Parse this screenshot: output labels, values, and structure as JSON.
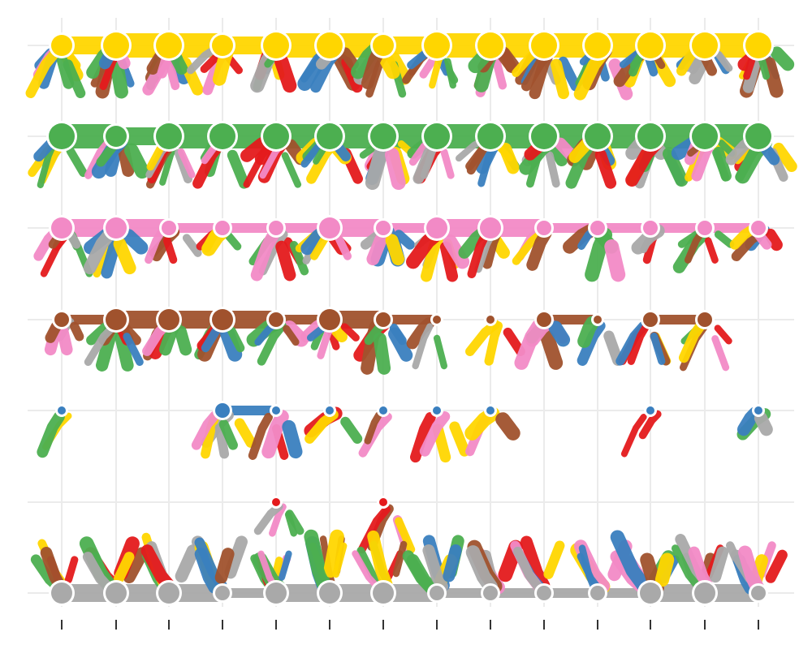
{
  "chart_data": {
    "type": "other",
    "grid": true,
    "rows": 7,
    "columns": 14,
    "colors": {
      "yellow": "#FFD600",
      "green": "#4CAF50",
      "brown": "#A0522D",
      "blue": "#3A7FBF",
      "red": "#E41A1C",
      "grey": "#A9A9A9",
      "pink": "#F28AC6"
    },
    "row_node_colors": [
      "yellow",
      "green",
      "pink",
      "brown",
      "blue",
      "red",
      "grey"
    ],
    "row_node_sizes": [
      [
        2,
        3,
        3,
        2,
        3,
        3,
        2,
        3,
        3,
        3,
        3,
        3,
        3,
        3
      ],
      [
        3,
        2,
        3,
        3,
        3,
        3,
        3,
        3,
        3,
        3,
        3,
        3,
        3,
        3
      ],
      [
        2,
        2,
        1,
        1,
        1,
        2,
        1,
        2,
        2,
        1,
        1,
        1,
        1,
        1
      ],
      [
        1,
        2,
        2,
        2,
        1,
        2,
        1,
        0,
        0,
        1,
        0,
        1,
        1,
        0
      ],
      [
        0,
        0,
        0,
        1,
        0,
        0,
        0,
        0,
        0,
        0,
        0,
        0,
        0,
        0
      ],
      [
        0,
        0,
        0,
        0,
        0,
        0,
        0,
        0,
        0,
        0,
        0,
        0,
        0,
        0
      ],
      [
        2,
        2,
        2,
        1,
        2,
        2,
        2,
        1,
        1,
        1,
        1,
        2,
        2,
        1
      ]
    ],
    "node_presence": [
      [
        1,
        1,
        1,
        1,
        1,
        1,
        1,
        1,
        1,
        1,
        1,
        1,
        1,
        1
      ],
      [
        1,
        1,
        1,
        1,
        1,
        1,
        1,
        1,
        1,
        1,
        1,
        1,
        1,
        1
      ],
      [
        1,
        1,
        1,
        1,
        1,
        1,
        1,
        1,
        1,
        1,
        1,
        1,
        1,
        1
      ],
      [
        1,
        1,
        1,
        1,
        1,
        1,
        1,
        1,
        1,
        1,
        1,
        1,
        1,
        0
      ],
      [
        1,
        0,
        0,
        1,
        1,
        1,
        1,
        1,
        1,
        0,
        0,
        1,
        0,
        1
      ],
      [
        0,
        0,
        0,
        0,
        1,
        0,
        1,
        0,
        0,
        0,
        0,
        0,
        0,
        0
      ],
      [
        1,
        1,
        1,
        1,
        1,
        1,
        1,
        1,
        1,
        1,
        1,
        1,
        1,
        1
      ]
    ]
  }
}
